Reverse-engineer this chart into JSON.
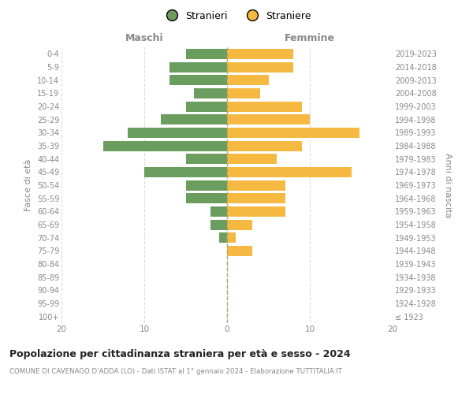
{
  "age_groups": [
    "100+",
    "95-99",
    "90-94",
    "85-89",
    "80-84",
    "75-79",
    "70-74",
    "65-69",
    "60-64",
    "55-59",
    "50-54",
    "45-49",
    "40-44",
    "35-39",
    "30-34",
    "25-29",
    "20-24",
    "15-19",
    "10-14",
    "5-9",
    "0-4"
  ],
  "birth_years": [
    "≤ 1923",
    "1924-1928",
    "1929-1933",
    "1934-1938",
    "1939-1943",
    "1944-1948",
    "1949-1953",
    "1954-1958",
    "1959-1963",
    "1964-1968",
    "1969-1973",
    "1974-1978",
    "1979-1983",
    "1984-1988",
    "1989-1993",
    "1994-1998",
    "1999-2003",
    "2004-2008",
    "2009-2013",
    "2014-2018",
    "2019-2023"
  ],
  "males": [
    0,
    0,
    0,
    0,
    0,
    0,
    1,
    2,
    2,
    5,
    5,
    10,
    5,
    15,
    12,
    8,
    5,
    4,
    7,
    7,
    5
  ],
  "females": [
    0,
    0,
    0,
    0,
    0,
    3,
    1,
    3,
    7,
    7,
    7,
    15,
    6,
    9,
    16,
    10,
    9,
    4,
    5,
    8,
    8
  ],
  "male_color": "#6b9e5e",
  "female_color": "#f5b942",
  "title": "Popolazione per cittadinanza straniera per età e sesso - 2024",
  "subtitle": "COMUNE DI CAVENAGO D'ADDA (LO) - Dati ISTAT al 1° gennaio 2024 - Elaborazione TUTTITALIA.IT",
  "xlabel_left": "Maschi",
  "xlabel_right": "Femmine",
  "ylabel_left": "Fasce di età",
  "ylabel_right": "Anni di nascita",
  "legend_male": "Stranieri",
  "legend_female": "Straniere",
  "xlim": 20,
  "background_color": "#ffffff",
  "grid_color": "#dddddd",
  "center_line_color": "#aaa866",
  "label_color": "#888888",
  "title_color": "#222222",
  "subtitle_color": "#888888"
}
